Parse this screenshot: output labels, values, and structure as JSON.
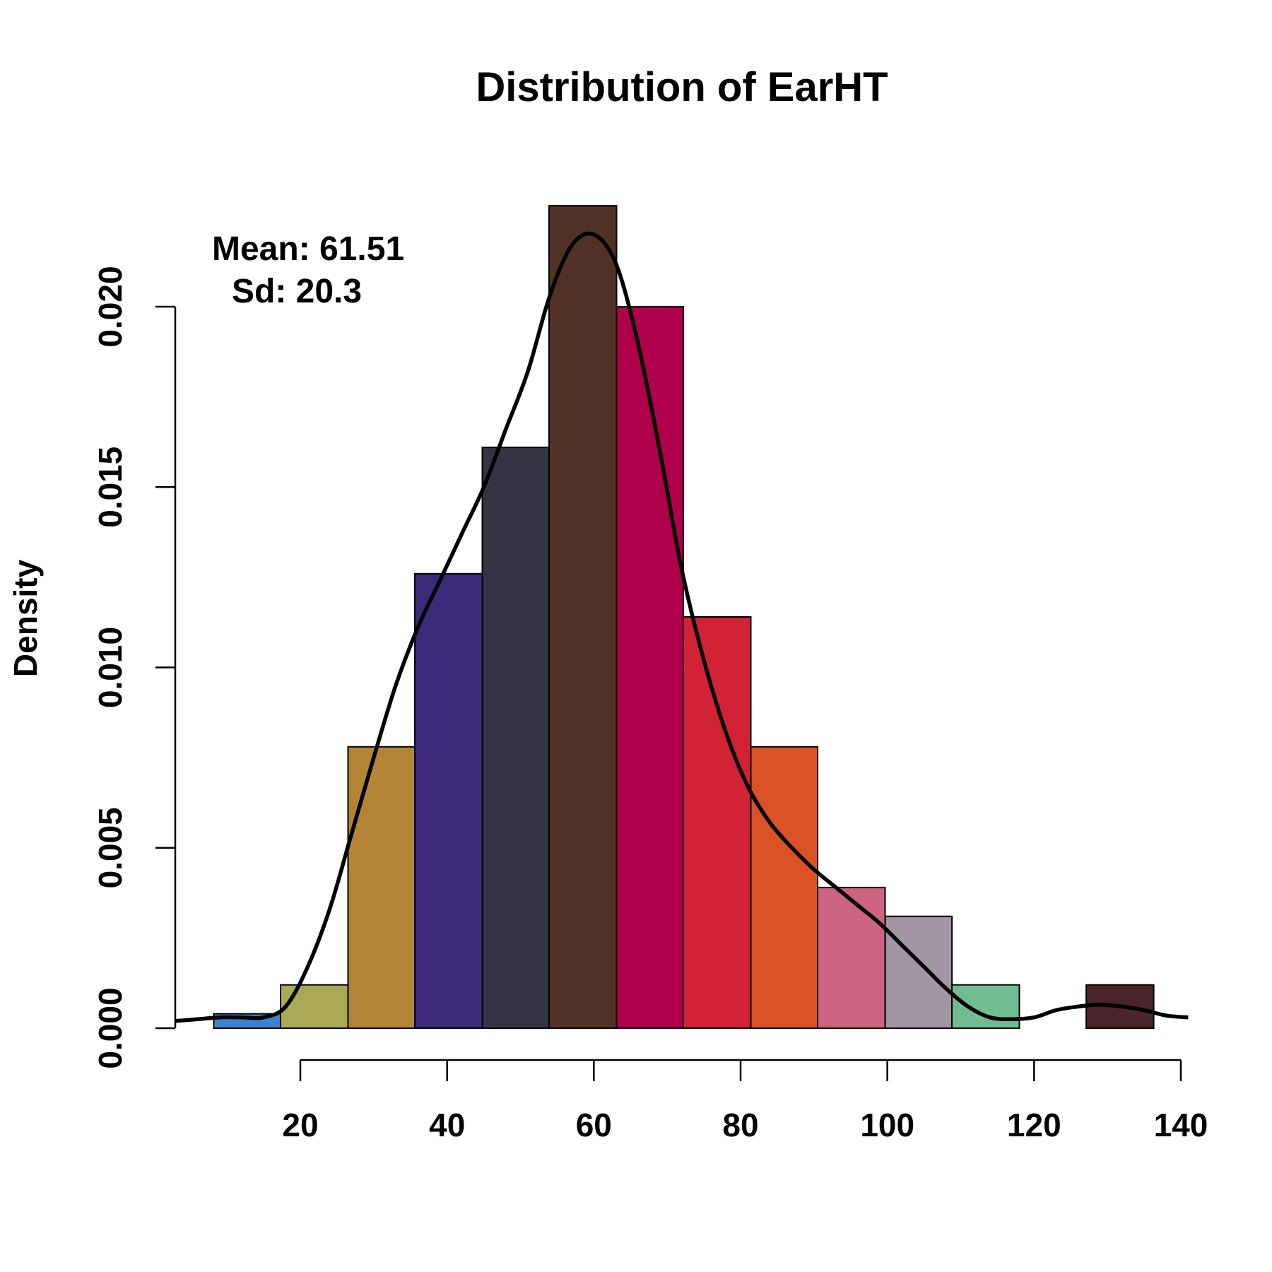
{
  "chart_data": {
    "type": "bar",
    "title": "Distribution of EarHT",
    "xlabel": "",
    "ylabel": "Density",
    "xlim": [
      0,
      140
    ],
    "ylim": [
      0,
      0.023
    ],
    "grid": false,
    "annotations": {
      "mean": "Mean: 61.51",
      "sd": "Sd: 20.3"
    },
    "x_ticks": [
      {
        "value": 20,
        "label": "20"
      },
      {
        "value": 40,
        "label": "40"
      },
      {
        "value": 60,
        "label": "60"
      },
      {
        "value": 80,
        "label": "80"
      },
      {
        "value": 100,
        "label": "100"
      },
      {
        "value": 120,
        "label": "120"
      },
      {
        "value": 140,
        "label": "140"
      }
    ],
    "y_ticks": [
      {
        "value": 0.0,
        "label": "0.000"
      },
      {
        "value": 0.005,
        "label": "0.005"
      },
      {
        "value": 0.01,
        "label": "0.010"
      },
      {
        "value": 0.015,
        "label": "0.015"
      },
      {
        "value": 0.02,
        "label": "0.020"
      }
    ],
    "bins": [
      {
        "start": 8.2,
        "end": 17.3,
        "density": 0.0004,
        "color": "#3b82d1"
      },
      {
        "start": 17.3,
        "end": 26.5,
        "density": 0.0012,
        "color": "#a9a956"
      },
      {
        "start": 26.5,
        "end": 35.6,
        "density": 0.0078,
        "color": "#b48535"
      },
      {
        "start": 35.6,
        "end": 44.8,
        "density": 0.0126,
        "color": "#3c2b79"
      },
      {
        "start": 44.8,
        "end": 53.9,
        "density": 0.0161,
        "color": "#353444"
      },
      {
        "start": 53.9,
        "end": 63.1,
        "density": 0.0228,
        "color": "#523127"
      },
      {
        "start": 63.1,
        "end": 72.2,
        "density": 0.02,
        "color": "#b0004c"
      },
      {
        "start": 72.2,
        "end": 81.4,
        "density": 0.0114,
        "color": "#d22236"
      },
      {
        "start": 81.4,
        "end": 90.5,
        "density": 0.0078,
        "color": "#db5227"
      },
      {
        "start": 90.5,
        "end": 99.7,
        "density": 0.0039,
        "color": "#cc6482"
      },
      {
        "start": 99.7,
        "end": 108.8,
        "density": 0.0031,
        "color": "#a295a4"
      },
      {
        "start": 108.8,
        "end": 118.0,
        "density": 0.0012,
        "color": "#71bd92"
      },
      {
        "start": 118.0,
        "end": 127.1,
        "density": 0.0,
        "color": "#ffffff"
      },
      {
        "start": 127.1,
        "end": 136.3,
        "density": 0.0012,
        "color": "#4c242b"
      }
    ],
    "density_curve": {
      "x": [
        3,
        6,
        9,
        12,
        15,
        18,
        21,
        24,
        27,
        30,
        33,
        36,
        39,
        42,
        45,
        48,
        51,
        54,
        57,
        60,
        63,
        66,
        69,
        72,
        75,
        78,
        81,
        84,
        87,
        90,
        93,
        96,
        99,
        102,
        105,
        108,
        111,
        114,
        117,
        120,
        123,
        126,
        129,
        132,
        135,
        138,
        141
      ],
      "y": [
        0.0002,
        0.00025,
        0.0003,
        0.0003,
        0.0003,
        0.0006,
        0.0017,
        0.0033,
        0.0054,
        0.0075,
        0.0095,
        0.0111,
        0.0124,
        0.0137,
        0.015,
        0.0166,
        0.0182,
        0.0203,
        0.0217,
        0.022,
        0.0212,
        0.019,
        0.016,
        0.0127,
        0.0102,
        0.0082,
        0.0067,
        0.0057,
        0.005,
        0.0044,
        0.0039,
        0.0034,
        0.0029,
        0.0023,
        0.0017,
        0.0011,
        0.0006,
        0.0003,
        0.00025,
        0.0003,
        0.0005,
        0.0006,
        0.00065,
        0.0006,
        0.0005,
        0.00035,
        0.0003
      ]
    }
  }
}
